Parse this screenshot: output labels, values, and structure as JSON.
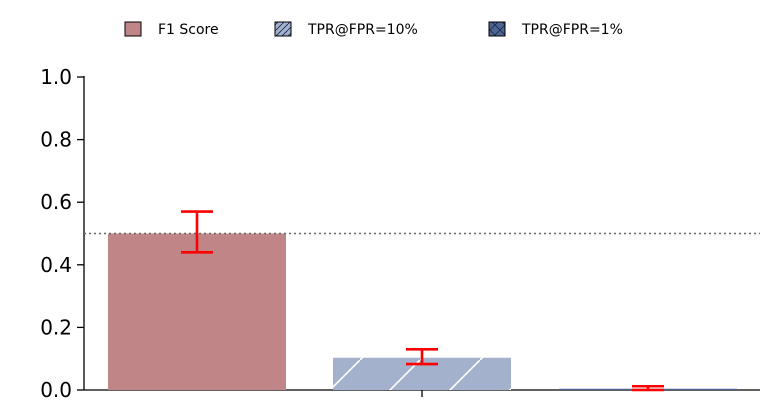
{
  "chart_data": {
    "type": "bar",
    "title": "",
    "xlabel": "",
    "ylabel": "",
    "ylim": [
      0,
      1
    ],
    "yticks": [
      "0.0",
      "0.2",
      "0.4",
      "0.6",
      "0.8",
      "1.0"
    ],
    "reference_line": {
      "y": 0.5,
      "style": "dotted",
      "color": "#666666"
    },
    "legend": {
      "placement": "top-center"
    },
    "series": [
      {
        "name": "F1 Score",
        "value": 0.5,
        "error_low": 0.44,
        "error_high": 0.57,
        "color": "#bf8587",
        "hatch": "none"
      },
      {
        "name": "TPR@FPR=10%",
        "value": 0.103,
        "error_low": 0.083,
        "error_high": 0.13,
        "color": "#a4b1cc",
        "hatch": "diagonal"
      },
      {
        "name": "TPR@FPR=1%",
        "value": 0.004,
        "error_low": 0.0,
        "error_high": 0.012,
        "color": "#4d6593",
        "hatch": "diagonal-cross"
      }
    ],
    "grid": false,
    "errorbar_color": "#ff0000"
  }
}
